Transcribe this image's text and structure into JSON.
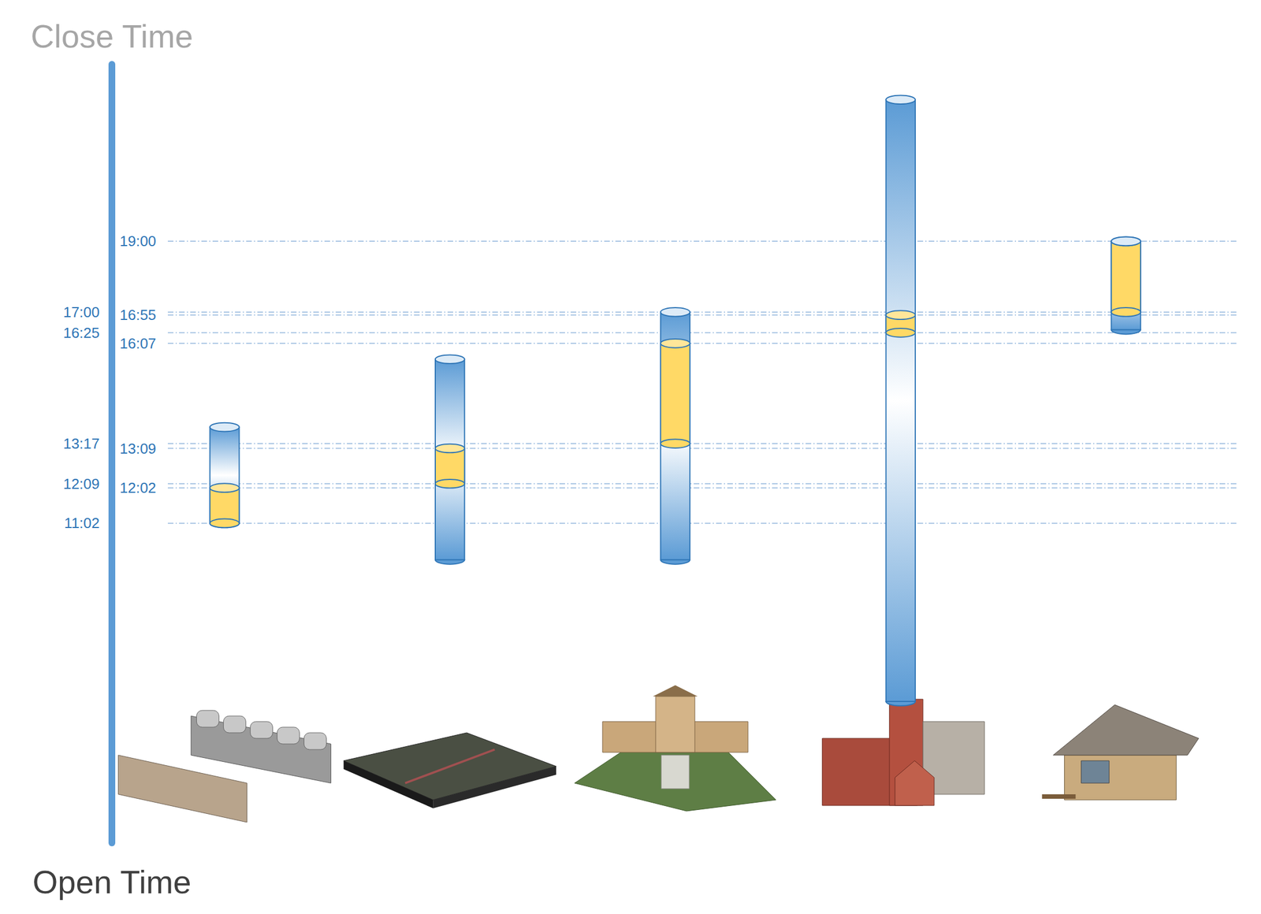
{
  "chart_data": {
    "type": "range_bar",
    "y_end_label": "Close Time",
    "y_start_label": "Open Time",
    "categories": [
      null,
      null,
      null,
      null,
      null
    ],
    "series": [
      {
        "color": "#5b9bd5",
        "low": [
          662,
          600,
          600,
          360,
          990
        ],
        "high": [
          825,
          940,
          1020,
          1380,
          1140
        ]
      },
      {
        "color": "#ffd966",
        "low": [
          662,
          729,
          797,
          985,
          1020
        ],
        "high": [
          722,
          789,
          967,
          1015,
          1140
        ]
      }
    ],
    "ylim": [
      120,
      1440
    ],
    "yticks": [
      {
        "value": 1140,
        "label": "19:00"
      },
      {
        "value": 1020,
        "label": "17:00"
      },
      {
        "value": 1015,
        "label": "16:55"
      },
      {
        "value": 985,
        "label": "16:25"
      },
      {
        "value": 967,
        "label": "16:07"
      },
      {
        "value": 797,
        "label": "13:17"
      },
      {
        "value": 789,
        "label": "13:09"
      },
      {
        "value": 729,
        "label": "12:09"
      },
      {
        "value": 722,
        "label": "12:02"
      },
      {
        "value": 662,
        "label": "11:02"
      }
    ],
    "grid": true,
    "tick_labels": "y"
  }
}
